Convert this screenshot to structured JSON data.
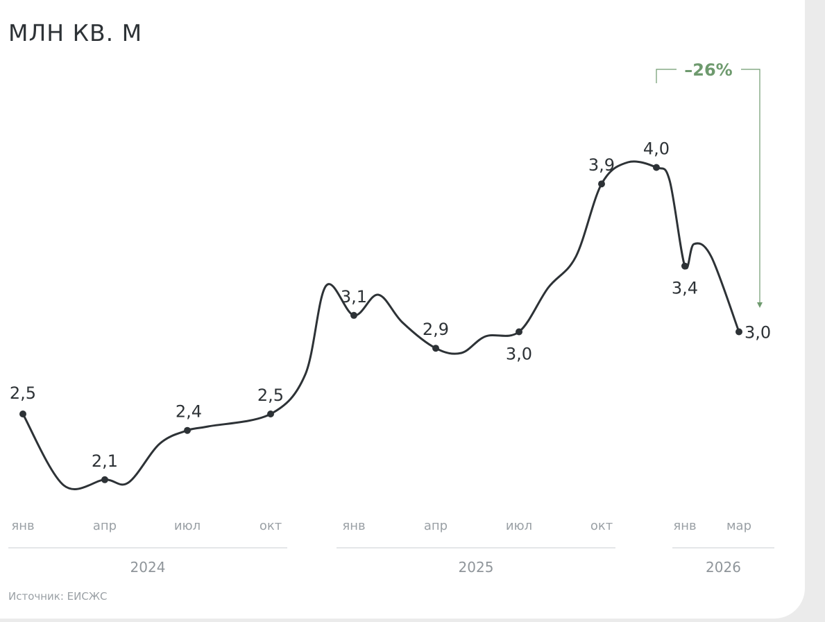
{
  "unit_label": "МЛН КВ. М",
  "source": "Источник: ЕИСЖС",
  "colors": {
    "line": "#2d3236",
    "annotation": "#6e9a6e",
    "axis_text": "#9aa0a5",
    "divider": "#c9cdd0"
  },
  "chart_data": {
    "type": "line",
    "ylabel": "МЛН КВ. М",
    "x_ticks": [
      "янв",
      "апр",
      "июл",
      "окт",
      "янв",
      "апр",
      "июл",
      "окт",
      "янв",
      "мар"
    ],
    "years": [
      "2024",
      "2025",
      "2026"
    ],
    "labeled_points": [
      {
        "x": "янв 2024",
        "value": 2.5,
        "label": "2,5"
      },
      {
        "x": "апр 2024",
        "value": 2.1,
        "label": "2,1"
      },
      {
        "x": "июл 2024",
        "value": 2.4,
        "label": "2,4"
      },
      {
        "x": "окт 2024",
        "value": 2.5,
        "label": "2,5"
      },
      {
        "x": "янв 2025",
        "value": 3.1,
        "label": "3,1"
      },
      {
        "x": "апр 2025",
        "value": 2.9,
        "label": "2,9"
      },
      {
        "x": "июл 2025",
        "value": 3.0,
        "label": "3,0"
      },
      {
        "x": "окт 2025",
        "value": 3.9,
        "label": "3,9"
      },
      {
        "x": "дек 2025",
        "value": 4.0,
        "label": "4,0"
      },
      {
        "x": "янв 2026",
        "value": 3.4,
        "label": "3,4"
      },
      {
        "x": "мар 2026",
        "value": 3.0,
        "label": "3,0"
      }
    ],
    "annotation": {
      "text": "–26%",
      "from": "дек 2025",
      "to": "мар 2026"
    },
    "grid": false,
    "legend": "none"
  }
}
